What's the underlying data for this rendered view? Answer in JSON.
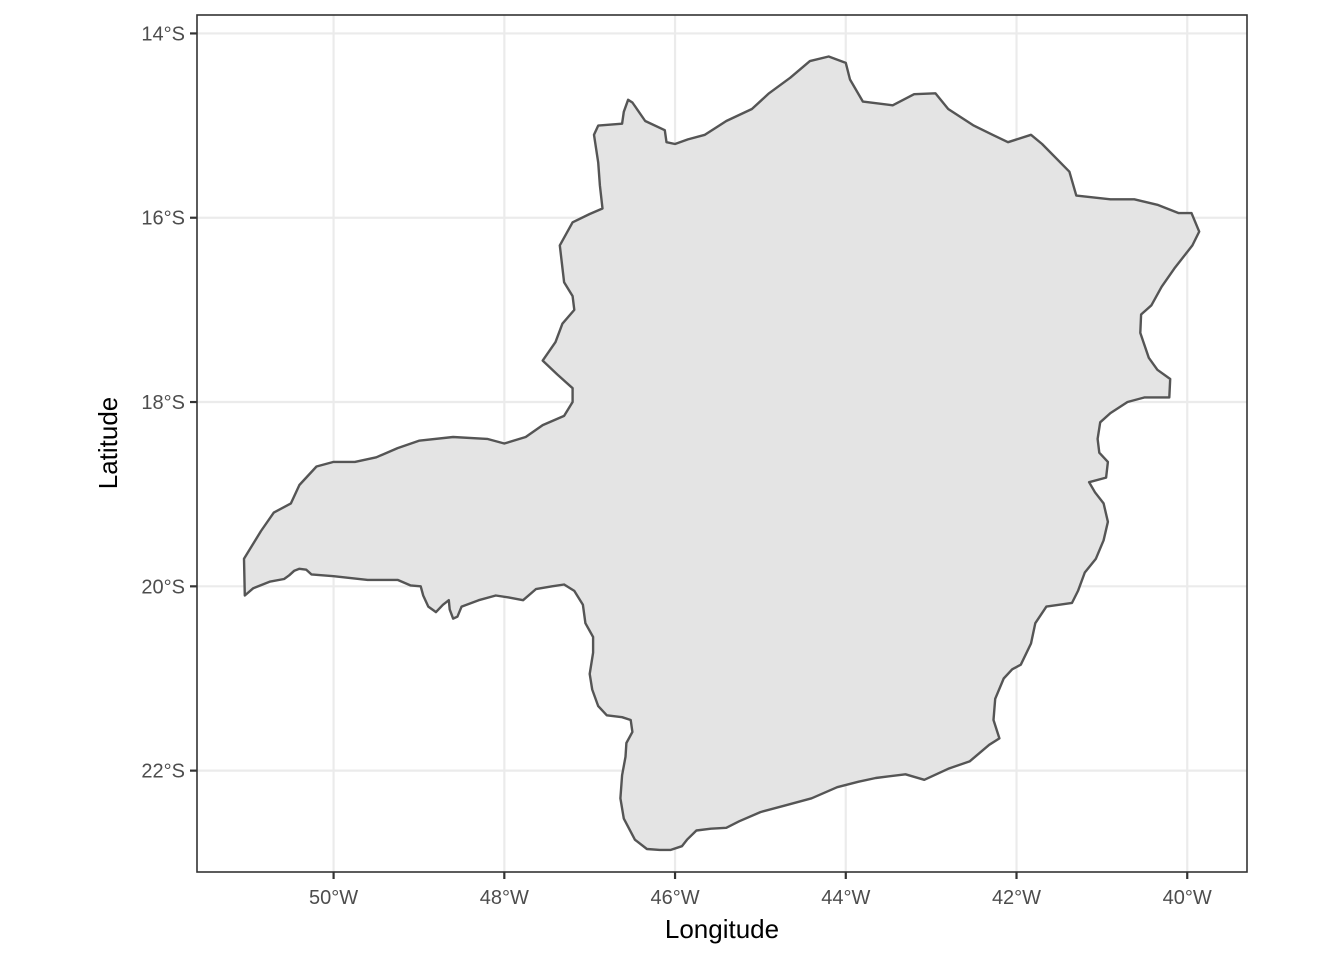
{
  "map": {
    "xlabel": "Longitude",
    "ylabel": "Latitude",
    "x_ticks": [
      {
        "value": -50,
        "label": "50°W"
      },
      {
        "value": -48,
        "label": "48°W"
      },
      {
        "value": -46,
        "label": "46°W"
      },
      {
        "value": -44,
        "label": "44°W"
      },
      {
        "value": -42,
        "label": "42°W"
      },
      {
        "value": -40,
        "label": "40°W"
      }
    ],
    "y_ticks": [
      {
        "value": -14,
        "label": "14°S"
      },
      {
        "value": -16,
        "label": "16°S"
      },
      {
        "value": -18,
        "label": "18°S"
      },
      {
        "value": -20,
        "label": "20°S"
      },
      {
        "value": -22,
        "label": "22°S"
      }
    ],
    "xlim": [
      -51.6,
      -39.3
    ],
    "ylim": [
      -23.1,
      -13.8
    ],
    "fill_color": "#e4e4e4",
    "outline_color": "#555555",
    "grid": true,
    "boundary": [
      [
        -51.04,
        -20.1
      ],
      [
        -50.94,
        -20.02
      ],
      [
        -50.75,
        -19.95
      ],
      [
        -50.58,
        -19.92
      ],
      [
        -50.52,
        -19.88
      ],
      [
        -50.46,
        -19.83
      ],
      [
        -50.4,
        -19.81
      ],
      [
        -50.32,
        -19.82
      ],
      [
        -50.26,
        -19.87
      ],
      [
        -50.0,
        -19.89
      ],
      [
        -49.6,
        -19.93
      ],
      [
        -49.25,
        -19.93
      ],
      [
        -49.1,
        -19.99
      ],
      [
        -48.98,
        -20.0
      ],
      [
        -48.95,
        -20.1
      ],
      [
        -48.89,
        -20.22
      ],
      [
        -48.8,
        -20.28
      ],
      [
        -48.72,
        -20.2
      ],
      [
        -48.65,
        -20.15
      ],
      [
        -48.64,
        -20.25
      ],
      [
        -48.6,
        -20.35
      ],
      [
        -48.55,
        -20.33
      ],
      [
        -48.5,
        -20.22
      ],
      [
        -48.3,
        -20.15
      ],
      [
        -48.1,
        -20.1
      ],
      [
        -47.95,
        -20.12
      ],
      [
        -47.78,
        -20.15
      ],
      [
        -47.63,
        -20.03
      ],
      [
        -47.44,
        -20.0
      ],
      [
        -47.3,
        -19.98
      ],
      [
        -47.18,
        -20.05
      ],
      [
        -47.08,
        -20.2
      ],
      [
        -47.05,
        -20.4
      ],
      [
        -46.96,
        -20.55
      ],
      [
        -46.96,
        -20.72
      ],
      [
        -47.0,
        -20.95
      ],
      [
        -46.97,
        -21.12
      ],
      [
        -46.9,
        -21.3
      ],
      [
        -46.8,
        -21.4
      ],
      [
        -46.62,
        -21.42
      ],
      [
        -46.52,
        -21.45
      ],
      [
        -46.5,
        -21.58
      ],
      [
        -46.57,
        -21.7
      ],
      [
        -46.58,
        -21.85
      ],
      [
        -46.62,
        -22.05
      ],
      [
        -46.64,
        -22.3
      ],
      [
        -46.6,
        -22.52
      ],
      [
        -46.47,
        -22.75
      ],
      [
        -46.33,
        -22.85
      ],
      [
        -46.18,
        -22.86
      ],
      [
        -46.05,
        -22.86
      ],
      [
        -45.92,
        -22.82
      ],
      [
        -45.86,
        -22.75
      ],
      [
        -45.75,
        -22.65
      ],
      [
        -45.58,
        -22.63
      ],
      [
        -45.4,
        -22.62
      ],
      [
        -45.25,
        -22.55
      ],
      [
        -45.0,
        -22.45
      ],
      [
        -44.72,
        -22.38
      ],
      [
        -44.4,
        -22.3
      ],
      [
        -44.1,
        -22.18
      ],
      [
        -43.85,
        -22.12
      ],
      [
        -43.65,
        -22.08
      ],
      [
        -43.3,
        -22.04
      ],
      [
        -43.08,
        -22.1
      ],
      [
        -42.8,
        -21.98
      ],
      [
        -42.55,
        -21.9
      ],
      [
        -42.32,
        -21.72
      ],
      [
        -42.2,
        -21.65
      ],
      [
        -42.27,
        -21.45
      ],
      [
        -42.25,
        -21.22
      ],
      [
        -42.15,
        -21.0
      ],
      [
        -42.05,
        -20.9
      ],
      [
        -41.95,
        -20.85
      ],
      [
        -41.83,
        -20.62
      ],
      [
        -41.78,
        -20.4
      ],
      [
        -41.65,
        -20.22
      ],
      [
        -41.35,
        -20.18
      ],
      [
        -41.28,
        -20.05
      ],
      [
        -41.2,
        -19.85
      ],
      [
        -41.07,
        -19.7
      ],
      [
        -40.98,
        -19.5
      ],
      [
        -40.93,
        -19.3
      ],
      [
        -40.98,
        -19.1
      ],
      [
        -41.08,
        -18.98
      ],
      [
        -41.15,
        -18.87
      ],
      [
        -40.95,
        -18.82
      ],
      [
        -40.93,
        -18.65
      ],
      [
        -41.03,
        -18.55
      ],
      [
        -41.05,
        -18.4
      ],
      [
        -41.02,
        -18.22
      ],
      [
        -40.9,
        -18.12
      ],
      [
        -40.7,
        -18.0
      ],
      [
        -40.5,
        -17.95
      ],
      [
        -40.21,
        -17.95
      ],
      [
        -40.2,
        -17.75
      ],
      [
        -40.35,
        -17.65
      ],
      [
        -40.45,
        -17.52
      ],
      [
        -40.55,
        -17.25
      ],
      [
        -40.54,
        -17.05
      ],
      [
        -40.42,
        -16.95
      ],
      [
        -40.3,
        -16.75
      ],
      [
        -40.15,
        -16.55
      ],
      [
        -39.94,
        -16.3
      ],
      [
        -39.86,
        -16.15
      ],
      [
        -39.95,
        -15.95
      ],
      [
        -40.1,
        -15.95
      ],
      [
        -40.35,
        -15.86
      ],
      [
        -40.62,
        -15.8
      ],
      [
        -40.9,
        -15.8
      ],
      [
        -41.3,
        -15.76
      ],
      [
        -41.38,
        -15.5
      ],
      [
        -41.7,
        -15.2
      ],
      [
        -41.83,
        -15.1
      ],
      [
        -42.1,
        -15.18
      ],
      [
        -42.28,
        -15.1
      ],
      [
        -42.5,
        -15.0
      ],
      [
        -42.8,
        -14.82
      ],
      [
        -42.95,
        -14.65
      ],
      [
        -43.2,
        -14.66
      ],
      [
        -43.45,
        -14.78
      ],
      [
        -43.8,
        -14.74
      ],
      [
        -43.95,
        -14.5
      ],
      [
        -44.0,
        -14.32
      ],
      [
        -44.2,
        -14.25
      ],
      [
        -44.42,
        -14.3
      ],
      [
        -44.65,
        -14.48
      ],
      [
        -44.9,
        -14.65
      ],
      [
        -45.1,
        -14.82
      ],
      [
        -45.4,
        -14.95
      ],
      [
        -45.65,
        -15.1
      ],
      [
        -45.85,
        -15.15
      ],
      [
        -46.0,
        -15.2
      ],
      [
        -46.1,
        -15.18
      ],
      [
        -46.12,
        -15.05
      ],
      [
        -46.35,
        -14.95
      ],
      [
        -46.5,
        -14.75
      ],
      [
        -46.55,
        -14.72
      ],
      [
        -46.6,
        -14.85
      ],
      [
        -46.62,
        -14.98
      ],
      [
        -46.9,
        -15.0
      ],
      [
        -46.95,
        -15.1
      ],
      [
        -46.9,
        -15.4
      ],
      [
        -46.88,
        -15.65
      ],
      [
        -46.85,
        -15.9
      ],
      [
        -47.0,
        -15.96
      ],
      [
        -47.2,
        -16.05
      ],
      [
        -47.35,
        -16.3
      ],
      [
        -47.3,
        -16.7
      ],
      [
        -47.2,
        -16.85
      ],
      [
        -47.18,
        -17.0
      ],
      [
        -47.32,
        -17.15
      ],
      [
        -47.4,
        -17.35
      ],
      [
        -47.55,
        -17.55
      ],
      [
        -47.38,
        -17.7
      ],
      [
        -47.2,
        -17.85
      ],
      [
        -47.2,
        -18.0
      ],
      [
        -47.3,
        -18.15
      ],
      [
        -47.55,
        -18.25
      ],
      [
        -47.75,
        -18.38
      ],
      [
        -48.0,
        -18.45
      ],
      [
        -48.2,
        -18.4
      ],
      [
        -48.6,
        -18.38
      ],
      [
        -49.0,
        -18.42
      ],
      [
        -49.25,
        -18.5
      ],
      [
        -49.5,
        -18.6
      ],
      [
        -49.75,
        -18.65
      ],
      [
        -50.0,
        -18.65
      ],
      [
        -50.2,
        -18.7
      ],
      [
        -50.4,
        -18.9
      ],
      [
        -50.5,
        -19.1
      ],
      [
        -50.7,
        -19.2
      ],
      [
        -50.85,
        -19.4
      ],
      [
        -50.95,
        -19.55
      ],
      [
        -51.05,
        -19.7
      ],
      [
        -51.04,
        -20.1
      ]
    ]
  }
}
